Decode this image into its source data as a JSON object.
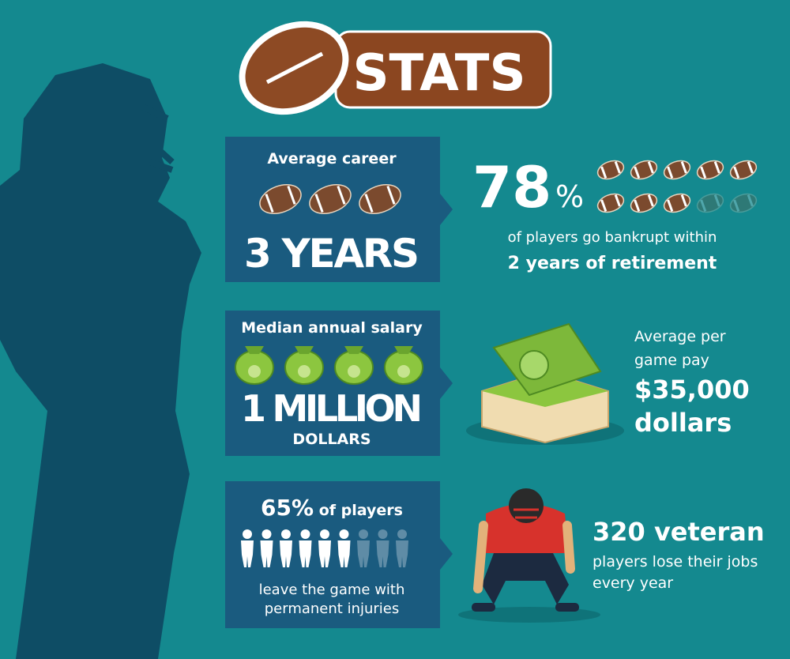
{
  "header": {
    "title": "STATS"
  },
  "career": {
    "label": "Average career",
    "value": "3 YEARS"
  },
  "bankrupt": {
    "percent": "78",
    "unit": "%",
    "line1": "of players go bankrupt within",
    "line2": "2 years of retirement"
  },
  "salary": {
    "label": "Median annual salary",
    "value": "1 MILLION",
    "unit": "DOLLARS"
  },
  "pay": {
    "line1": "Average per",
    "line2": "game pay",
    "amount": "$35,000",
    "unit": "dollars"
  },
  "injuries": {
    "percent": "65%",
    "headline": "of players",
    "line1": "leave the game with",
    "line2": "permanent injuries"
  },
  "veterans": {
    "headline": "320 veteran",
    "line1": "players lose their jobs",
    "line2": "every year"
  }
}
